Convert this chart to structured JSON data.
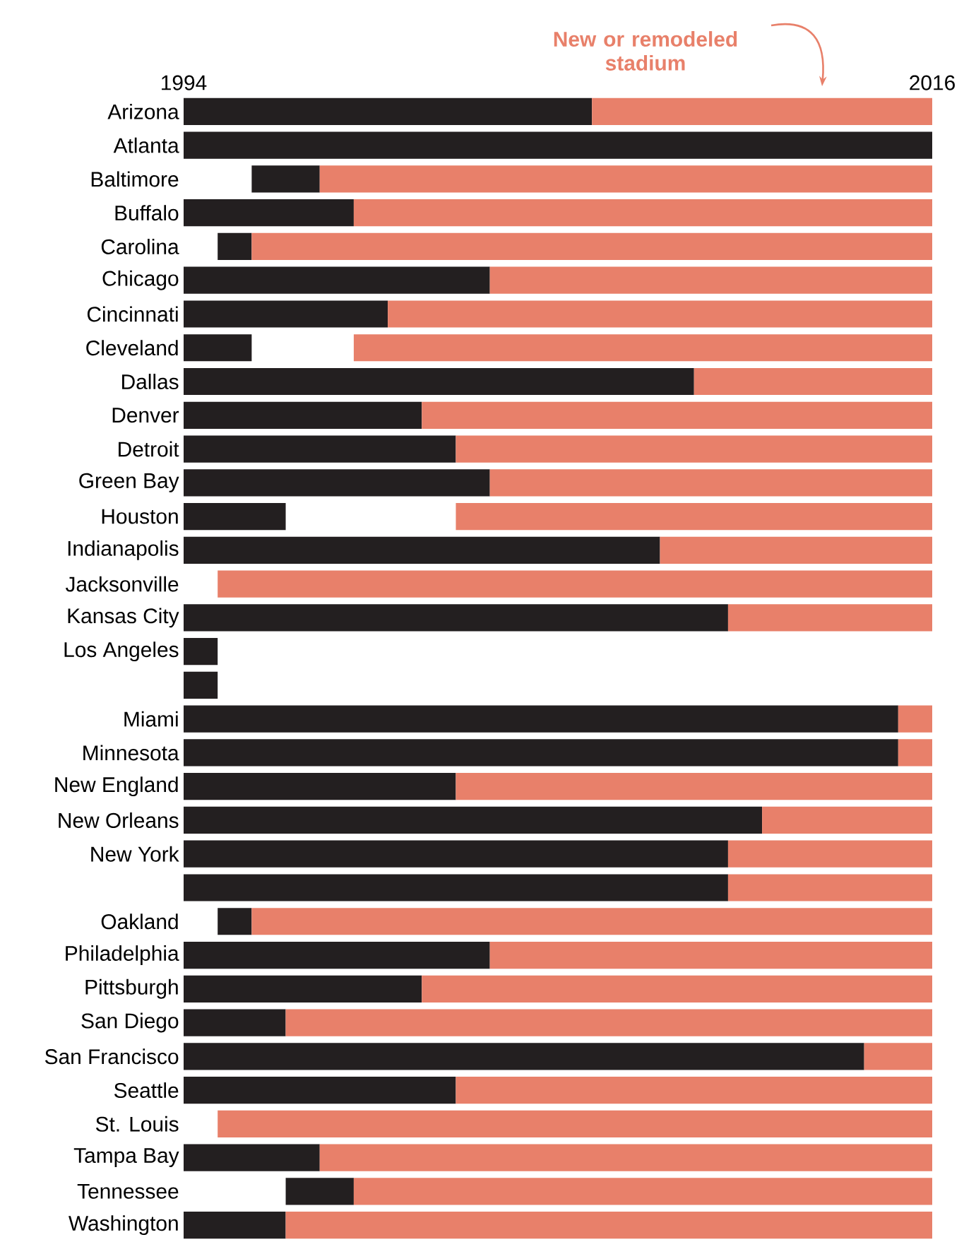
{
  "chart_data": {
    "type": "bar",
    "orientation": "horizontal",
    "categories": [
      "Arizona",
      "Atlanta",
      "Baltimore",
      "Buffalo",
      "Carolina",
      "Chicago",
      "Cincinnati",
      "Cleveland",
      "Dallas",
      "Denver",
      "Detroit",
      "Green Bay",
      "Houston",
      "Indianapolis",
      "Jacksonville",
      "Kansas City",
      "Los Angeles",
      null,
      "Miami",
      "Minnesota",
      "New England",
      "New Orleans",
      "New York",
      null,
      "Oakland",
      "Philadelphia",
      "Pittsburgh",
      "San Diego",
      "San Francisco",
      "Seattle",
      "St. Louis",
      "Tampa Bay",
      "Tennessee",
      "Washington"
    ],
    "series": [
      {
        "color": "#231f20",
        "base": [
          1994,
          1994,
          1996,
          1994,
          1995,
          1994,
          1994,
          1994,
          1994,
          1994,
          1994,
          1994,
          1994,
          1994,
          null,
          1994,
          1994,
          1994,
          1994,
          1994,
          1994,
          1994,
          1994,
          1994,
          1995,
          1994,
          1994,
          1994,
          1994,
          1994,
          null,
          1994,
          1997,
          1994
        ],
        "values": [
          12,
          22,
          2,
          5,
          1,
          9,
          6,
          2,
          15,
          7,
          8,
          9,
          3,
          14,
          null,
          16,
          1,
          1,
          21,
          21,
          8,
          17,
          16,
          16,
          1,
          9,
          7,
          3,
          20,
          8,
          null,
          4,
          2,
          3
        ]
      },
      {
        "color": "#e8806a",
        "base": [
          2006,
          null,
          1998,
          1999,
          1996,
          2003,
          2000,
          1999,
          2009,
          2001,
          2002,
          2003,
          2002,
          2008,
          1995,
          2010,
          null,
          null,
          2015,
          2015,
          2002,
          2011,
          2010,
          2010,
          1996,
          2003,
          2001,
          1997,
          2014,
          2002,
          1995,
          1998,
          1999,
          1997
        ],
        "values": [
          10,
          null,
          18,
          17,
          20,
          13,
          16,
          17,
          7,
          15,
          14,
          13,
          14,
          8,
          21,
          6,
          null,
          null,
          1,
          1,
          14,
          5,
          6,
          6,
          20,
          13,
          15,
          19,
          2,
          14,
          21,
          18,
          17,
          19
        ]
      }
    ],
    "xlim": [
      1994,
      2016
    ],
    "xticks": [
      1994,
      2016
    ],
    "annotations": [
      "New or remodeled stadium"
    ]
  }
}
